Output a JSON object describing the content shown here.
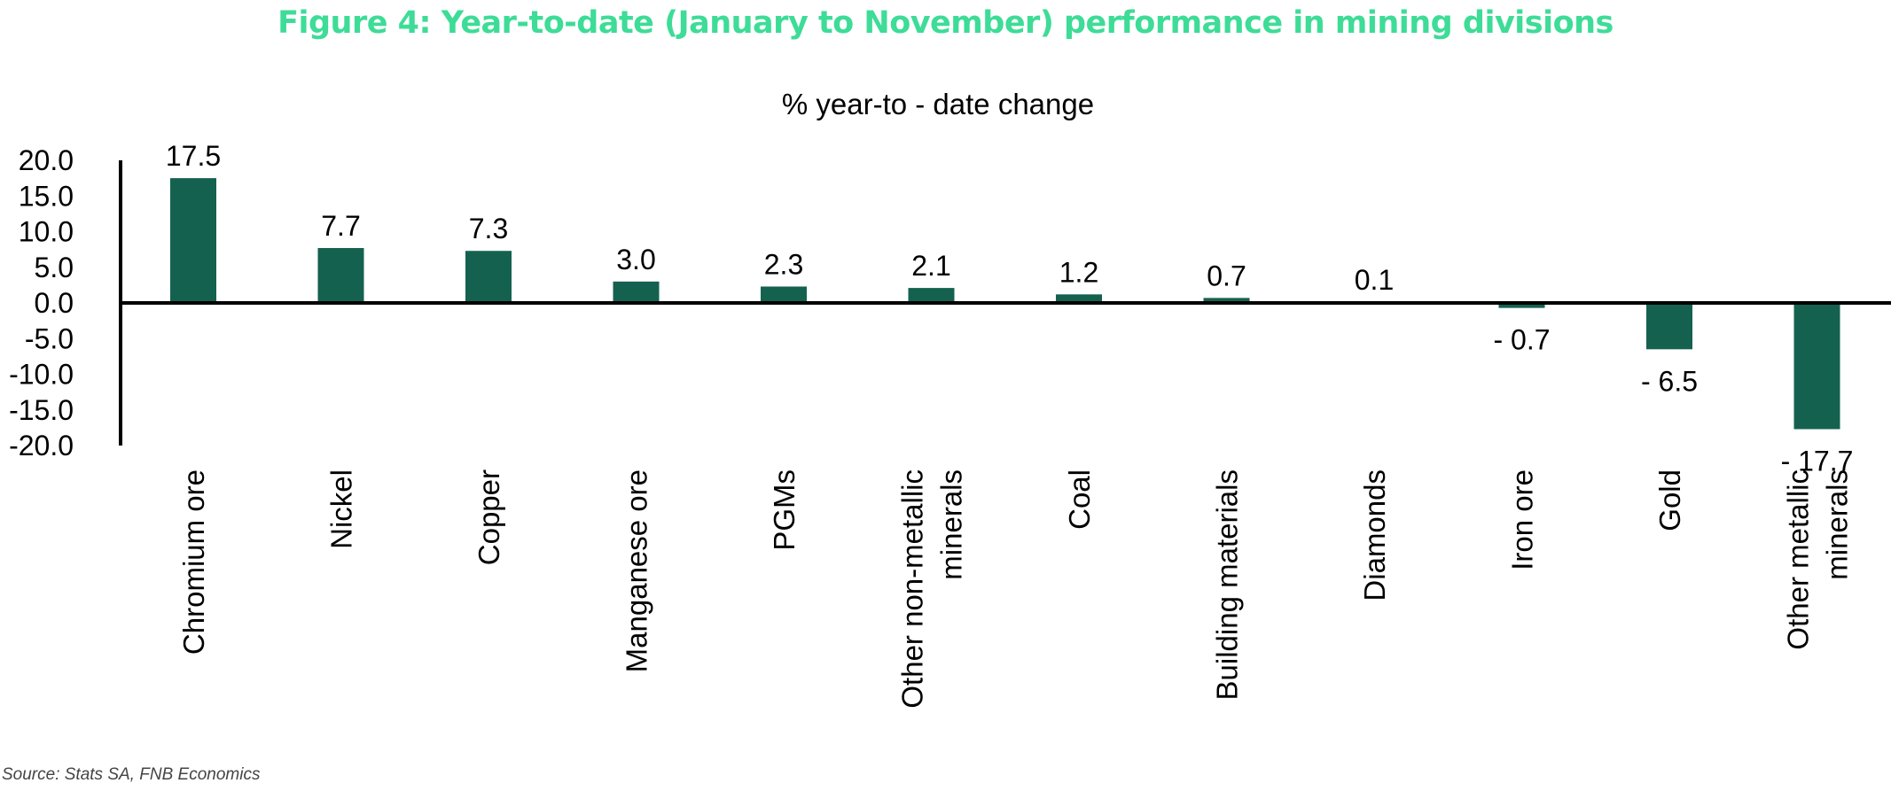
{
  "figure_title": "Figure 4: Year-to-date (January to November) performance in mining divisions",
  "source_note": "Source: Stats SA, FNB Economics",
  "colors": {
    "bar": "#156150",
    "title": "#3ddc97",
    "axis": "#000000"
  },
  "chart_data": {
    "type": "bar",
    "title": "% year-to - date change",
    "xlabel": "",
    "ylabel": "",
    "ylim": [
      -20,
      20
    ],
    "yticks": [
      20,
      15,
      10,
      5,
      0,
      -5,
      -10,
      -15,
      -20
    ],
    "ytick_labels": [
      "20.0",
      "15.0",
      "10.0",
      "5.0",
      "0.0",
      "-5.0",
      "-10.0",
      "-15.0",
      "-20.0"
    ],
    "categories": [
      [
        "Chromium ore"
      ],
      [
        "Nickel"
      ],
      [
        "Copper"
      ],
      [
        "Manganese ore"
      ],
      [
        "PGMs"
      ],
      [
        "Other non-metallic",
        "minerals"
      ],
      [
        "Coal"
      ],
      [
        "Building materials"
      ],
      [
        "Diamonds"
      ],
      [
        "Iron ore"
      ],
      [
        "Gold"
      ],
      [
        "Other metallic",
        "minerals"
      ]
    ],
    "values": [
      17.5,
      7.7,
      7.3,
      3.0,
      2.3,
      2.1,
      1.2,
      0.7,
      0.1,
      -0.7,
      -6.5,
      -17.7
    ],
    "data_labels": [
      "17.5",
      "7.7",
      "7.3",
      "3.0",
      "2.3",
      "2.1",
      "1.2",
      "0.7",
      "0.1",
      "- 0.7",
      "- 6.5",
      "- 17.7"
    ],
    "legend": "none",
    "grid": false
  }
}
